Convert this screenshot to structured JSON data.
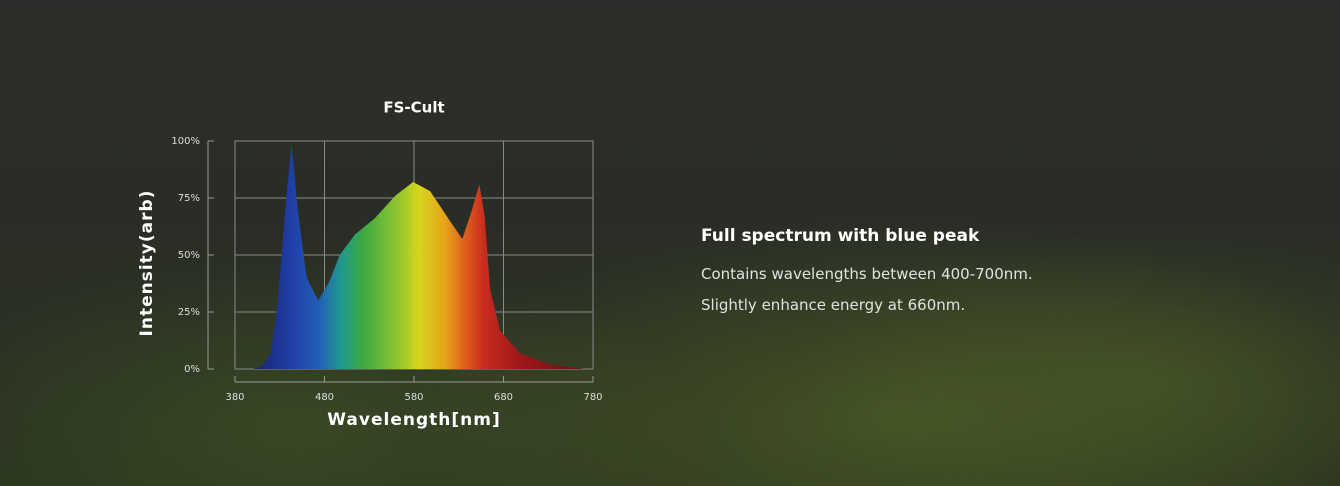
{
  "chart_data": {
    "type": "area",
    "title": "FS-Cult",
    "x_label": "Wavelength[nm]",
    "y_label": "Intensity(arb)",
    "x": [
      400,
      410,
      420,
      428,
      435,
      443,
      450,
      460,
      473,
      485,
      497,
      514,
      536,
      559,
      579,
      598,
      620,
      634,
      645,
      653,
      659,
      665,
      676,
      698,
      732,
      760,
      770
    ],
    "values": [
      0,
      1,
      7,
      30,
      65,
      99,
      70,
      40,
      30,
      38,
      50,
      59,
      66,
      76,
      82,
      78,
      65,
      57,
      70,
      81,
      67,
      35,
      17,
      7,
      2,
      0.5,
      0
    ],
    "xlim": [
      380,
      780
    ],
    "xticks": [
      380,
      480,
      580,
      680,
      780
    ],
    "ylim": [
      0,
      100
    ],
    "yticks": [
      {
        "value": 0,
        "label": "0%"
      },
      {
        "value": 25,
        "label": "25%"
      },
      {
        "value": 50,
        "label": "50%"
      },
      {
        "value": 75,
        "label": "75%"
      },
      {
        "value": 100,
        "label": "100%"
      }
    ],
    "grid": true
  },
  "feature": {
    "heading": "Full spectrum with blue peak",
    "lines": [
      "Contains wavelengths between 400-700nm.",
      "Slightly enhance energy at 660nm."
    ]
  }
}
